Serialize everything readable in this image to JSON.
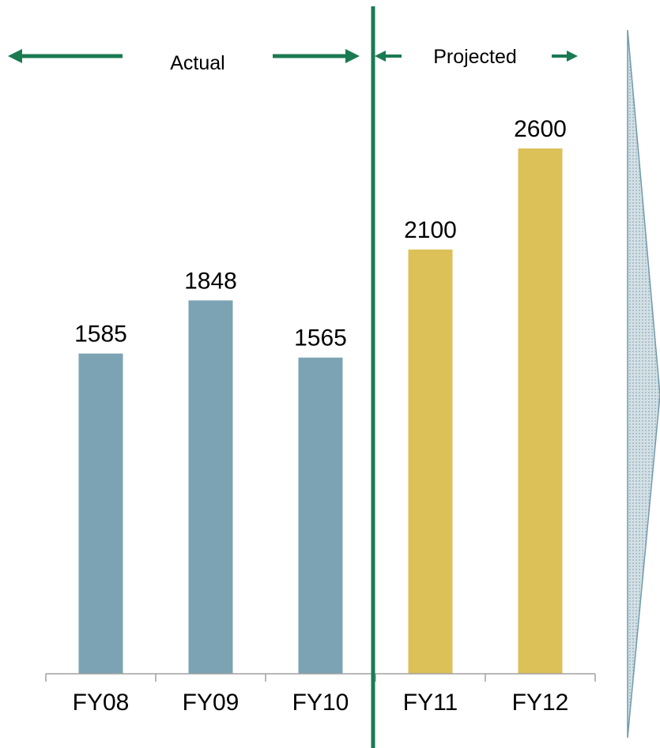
{
  "chart_data": {
    "type": "bar",
    "categories": [
      "FY08",
      "FY09",
      "FY10",
      "FY11",
      "FY12"
    ],
    "values": [
      1585,
      1848,
      1565,
      2100,
      2600
    ],
    "groups": [
      {
        "label": "Actual",
        "categories": [
          "FY08",
          "FY09",
          "FY10"
        ]
      },
      {
        "label": "Projected",
        "categories": [
          "FY11",
          "FY12"
        ]
      }
    ],
    "ylim": [
      0,
      2600
    ],
    "grid": false,
    "data_labels": true
  },
  "colors": {
    "actual_bar": "#7ba3b3",
    "projected_bar": "#dcc058",
    "divider": "#1a7a52",
    "axis": "#a0a0a0",
    "side_arrow_fill": "#c5d5dc",
    "side_arrow_stroke": "#6f9bac"
  },
  "icons": {
    "actual_arrows": "double-headed-arrow-icon",
    "projected_arrows": "double-headed-arrow-icon",
    "side_arrow": "chevron-right-icon"
  }
}
